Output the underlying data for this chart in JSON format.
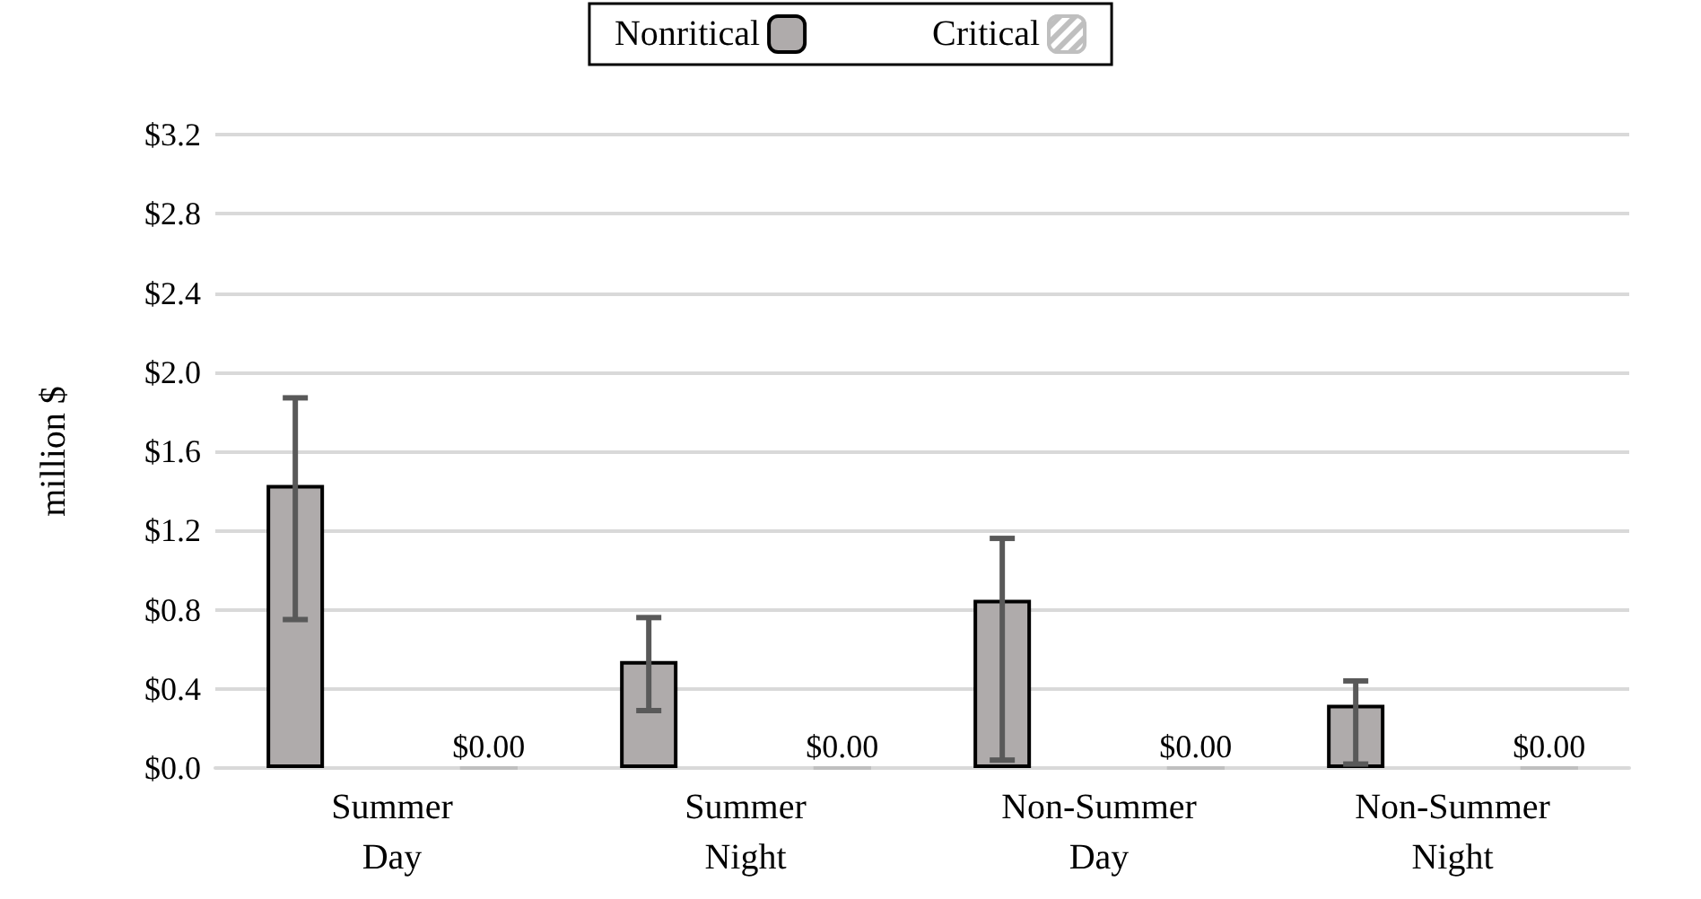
{
  "chart_data": {
    "type": "bar",
    "ylabel": "million $",
    "categories": [
      "Summer Day",
      "Summer Night",
      "Non-Summer Day",
      "Non-Summer Night"
    ],
    "series": [
      {
        "name": "Nonritical",
        "color": "#afabab",
        "values": [
          1.43,
          0.54,
          0.85,
          0.32
        ],
        "errors": [
          [
            0.75,
            1.87
          ],
          [
            0.29,
            0.76
          ],
          [
            0.04,
            1.16
          ],
          [
            0.02,
            0.44
          ]
        ]
      },
      {
        "name": "Critical",
        "color": "#bfbfbf",
        "values": [
          0,
          0,
          0,
          0
        ],
        "value_labels": [
          "$0.00",
          "$0.00",
          "$0.00",
          "$0.00"
        ]
      }
    ],
    "ylim": [
      0,
      3.2
    ],
    "yticks": [
      {
        "value": 0,
        "label": "$0.0"
      },
      {
        "value": 0.4,
        "label": "$0.4"
      },
      {
        "value": 0.8,
        "label": "$0.8"
      },
      {
        "value": 1.2,
        "label": "$1.2"
      },
      {
        "value": 1.6,
        "label": "$1.6"
      },
      {
        "value": 2.0,
        "label": "$2.0"
      },
      {
        "value": 2.4,
        "label": "$2.4"
      },
      {
        "value": 2.8,
        "label": "$2.8"
      },
      {
        "value": 3.2,
        "label": "$3.2"
      }
    ],
    "grid": "y",
    "legend": "top"
  }
}
